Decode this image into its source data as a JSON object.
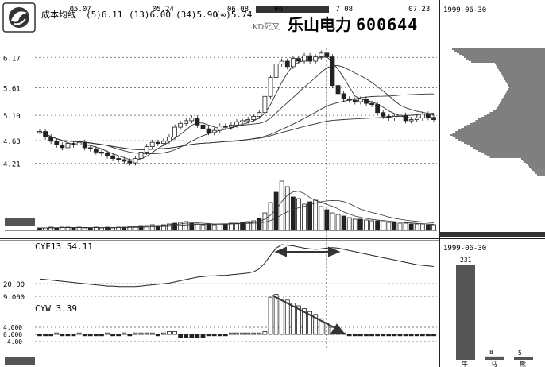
{
  "header": {
    "logo_icon": "circle-swirl-logo-icon",
    "indicator_label": "成本均线",
    "ma_values": [
      "(5)6.11",
      "(13)6.00",
      "(34)5.90",
      "(∞)5.74"
    ],
    "stock_name": "乐山电力",
    "stock_code": "600644",
    "overlap_text": "KD死叉"
  },
  "side": {
    "top_date": "1999-06-30",
    "bottom_date": "1999-06-30",
    "bars": [
      {
        "label": "牛",
        "value": 231
      },
      {
        "label": "马",
        "value": 8
      },
      {
        "label": "熊",
        "value": 5
      }
    ],
    "top_value_label": "231",
    "mid_value_label": "8",
    "low_value_label": "5"
  },
  "chart_data": [
    {
      "type": "candlestick",
      "title": "成本均线",
      "x_dates": [
        "05.07",
        "05.24",
        "06.08",
        "06",
        "7.08",
        "07.23"
      ],
      "y_ticks": [
        "6.17",
        "5.61",
        "5.10",
        "4.63",
        "4.21"
      ],
      "ylim": [
        4.0,
        6.35
      ],
      "series": [
        {
          "name": "(5)",
          "value": 6.11
        },
        {
          "name": "(13)",
          "value": 6.0
        },
        {
          "name": "(34)",
          "value": 5.9
        },
        {
          "name": "(∞)",
          "value": 5.74
        }
      ],
      "closes": [
        4.8,
        4.7,
        4.62,
        4.55,
        4.5,
        4.58,
        4.55,
        4.6,
        4.5,
        4.48,
        4.42,
        4.4,
        4.35,
        4.3,
        4.28,
        4.25,
        4.22,
        4.3,
        4.42,
        4.52,
        4.6,
        4.58,
        4.62,
        4.7,
        4.88,
        4.95,
        5.0,
        5.05,
        4.92,
        4.85,
        4.78,
        4.82,
        4.9,
        4.88,
        4.92,
        4.98,
        5.0,
        5.02,
        5.08,
        5.15,
        5.45,
        5.8,
        6.05,
        6.1,
        6.0,
        6.15,
        6.1,
        6.2,
        6.1,
        6.18,
        6.25,
        6.18,
        5.65,
        5.5,
        5.4,
        5.38,
        5.35,
        5.4,
        5.32,
        5.3,
        5.15,
        5.08,
        5.05,
        5.08,
        5.1,
        5.0,
        5.02,
        5.05,
        5.12,
        5.06,
        5.02
      ]
    },
    {
      "type": "bar",
      "title": "volume",
      "values": [
        3,
        3,
        4,
        3,
        4,
        4,
        3,
        4,
        3,
        3,
        4,
        3,
        4,
        3,
        4,
        4,
        5,
        5,
        6,
        6,
        7,
        6,
        7,
        8,
        9,
        10,
        11,
        9,
        8,
        7,
        8,
        7,
        8,
        8,
        9,
        9,
        10,
        11,
        12,
        15,
        22,
        35,
        48,
        62,
        55,
        42,
        40,
        33,
        36,
        38,
        30,
        26,
        22,
        20,
        18,
        16,
        14,
        14,
        13,
        12,
        12,
        11,
        10,
        10,
        9,
        9,
        8,
        8,
        8,
        7,
        7
      ]
    },
    {
      "type": "line",
      "title": "CYF13",
      "label": "CYF13 54.11",
      "y_ticks": [
        "20.00",
        "9.000"
      ],
      "values": [
        28,
        27,
        26,
        25,
        24,
        23,
        22,
        21,
        20,
        19,
        18,
        17,
        16,
        16,
        15,
        15,
        15,
        15,
        16,
        17,
        18,
        19,
        20,
        21,
        23,
        25,
        27,
        29,
        31,
        32,
        33,
        33,
        34,
        34,
        35,
        36,
        37,
        38,
        40,
        45,
        55,
        68,
        80,
        86,
        85,
        84,
        82,
        80,
        79,
        78,
        79,
        80,
        81,
        80,
        78,
        76,
        74,
        72,
        70,
        68,
        66,
        64,
        62,
        60,
        58,
        56,
        54,
        52,
        51,
        50,
        49
      ]
    },
    {
      "type": "bar",
      "title": "CYW",
      "label": "CYW 3.39",
      "y_ticks": [
        "4.000",
        "0.000",
        "-4.00"
      ],
      "values": [
        -1,
        -1,
        -1,
        1,
        -1,
        -1,
        -1,
        1,
        -1,
        -1,
        -1,
        -1,
        1,
        -1,
        -1,
        1,
        -1,
        1,
        1,
        1,
        1,
        -1,
        1,
        2,
        2,
        -2,
        -2,
        -2,
        -2,
        -2,
        -1,
        -1,
        -1,
        -1,
        1,
        1,
        1,
        1,
        1,
        1,
        2,
        26,
        28,
        27,
        24,
        22,
        20,
        18,
        16,
        14,
        11,
        8,
        5,
        2,
        1,
        -1,
        -1,
        -1,
        -1,
        -1,
        -1,
        -1,
        -1,
        -1,
        -1,
        -1,
        -1,
        -1,
        -1,
        -1,
        -1
      ]
    }
  ]
}
